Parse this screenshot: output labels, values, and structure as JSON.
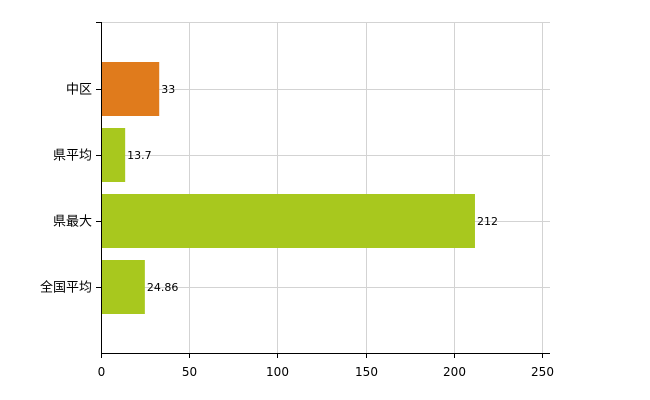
{
  "chart_data": {
    "type": "bar",
    "orientation": "horizontal",
    "categories": [
      "中区",
      "県平均",
      "県最大",
      "全国平均"
    ],
    "values": [
      33,
      13.7,
      212,
      24.86
    ],
    "data_labels": [
      "33",
      "13.7",
      "212",
      "24.86"
    ],
    "bar_colors": [
      "#e07b1c",
      "#a8c81e",
      "#a8c81e",
      "#a8c81e"
    ],
    "xlim": [
      0,
      250
    ],
    "x_ticks": [
      0,
      50,
      100,
      150,
      200,
      250
    ],
    "x_tick_labels": [
      "0",
      "50",
      "100",
      "150",
      "200",
      "250"
    ],
    "grid": true,
    "legend": "none"
  }
}
